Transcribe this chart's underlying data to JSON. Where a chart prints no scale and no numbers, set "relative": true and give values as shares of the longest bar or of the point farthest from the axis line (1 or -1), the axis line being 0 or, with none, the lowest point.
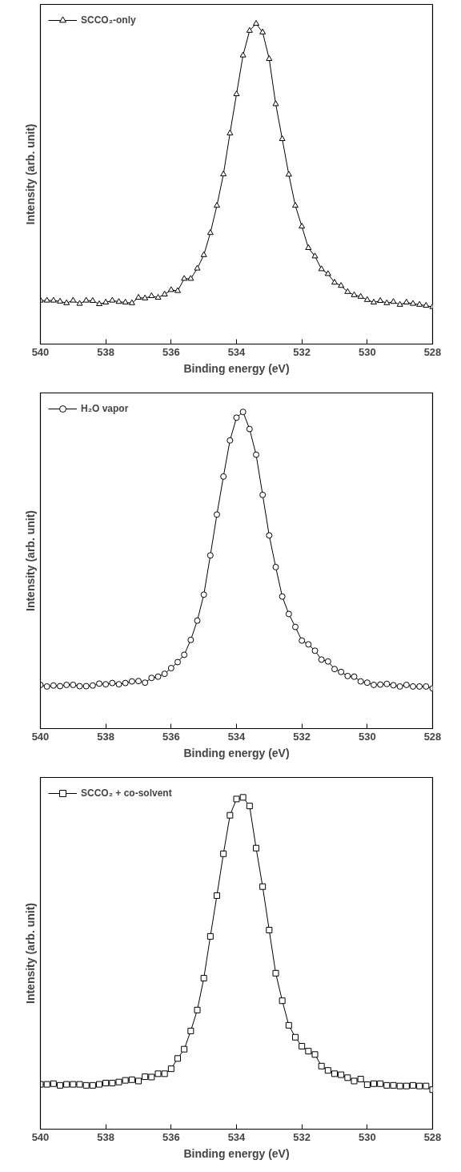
{
  "chart_data": [
    {
      "type": "line",
      "relative": true,
      "xlabel": "Binding energy (eV)",
      "ylabel": "Intensity (arb. unit)",
      "xlim": [
        540,
        528
      ],
      "xticks": [
        540,
        538,
        536,
        534,
        532,
        530,
        528
      ],
      "grid": false,
      "legend": "top left",
      "marker": "triangle",
      "line_style": "solid",
      "x": [
        540,
        539.8,
        539.6,
        539.4,
        539.2,
        539,
        538.8,
        538.6,
        538.4,
        538.2,
        538,
        537.8,
        537.6,
        537.4,
        537.2,
        537,
        536.8,
        536.6,
        536.4,
        536.2,
        536,
        535.8,
        535.6,
        535.4,
        535.2,
        535,
        534.8,
        534.6,
        534.4,
        534.2,
        534,
        533.8,
        533.6,
        533.4,
        533.2,
        533,
        532.8,
        532.6,
        532.4,
        532.2,
        532,
        531.8,
        531.6,
        531.4,
        531.2,
        531,
        530.8,
        530.6,
        530.4,
        530.2,
        530,
        529.8,
        529.6,
        529.4,
        529.2,
        529,
        528.8,
        528.6,
        528.4,
        528.2,
        528
      ],
      "series": [
        {
          "name": "SCCO₂-only",
          "color": "#000000",
          "values": [
            0.136,
            0.136,
            0.136,
            0.133,
            0.128,
            0.136,
            0.126,
            0.136,
            0.135,
            0.125,
            0.13,
            0.136,
            0.132,
            0.13,
            0.128,
            0.145,
            0.143,
            0.15,
            0.145,
            0.155,
            0.169,
            0.166,
            0.204,
            0.204,
            0.236,
            0.278,
            0.347,
            0.432,
            0.53,
            0.658,
            0.78,
            0.901,
            0.978,
            1,
            0.973,
            0.89,
            0.749,
            0.64,
            0.529,
            0.432,
            0.367,
            0.3,
            0.274,
            0.234,
            0.219,
            0.192,
            0.182,
            0.163,
            0.153,
            0.148,
            0.138,
            0.13,
            0.135,
            0.128,
            0.132,
            0.123,
            0.13,
            0.126,
            0.123,
            0.12,
            0.116
          ]
        }
      ]
    },
    {
      "type": "line",
      "relative": true,
      "xlabel": "Binding energy (eV)",
      "ylabel": "Intensity (arb. unit)",
      "xlim": [
        540,
        528
      ],
      "xticks": [
        540,
        538,
        536,
        534,
        532,
        530,
        528
      ],
      "grid": false,
      "legend": "top left",
      "marker": "circle",
      "line_style": "solid",
      "x": [
        540,
        539.8,
        539.6,
        539.4,
        539.2,
        539,
        538.8,
        538.6,
        538.4,
        538.2,
        538,
        537.8,
        537.6,
        537.4,
        537.2,
        537,
        536.8,
        536.6,
        536.4,
        536.2,
        536,
        535.8,
        535.6,
        535.4,
        535.2,
        535,
        534.8,
        534.6,
        534.4,
        534.2,
        534,
        533.8,
        533.6,
        533.4,
        533.2,
        533,
        532.8,
        532.6,
        532.4,
        532.2,
        532,
        531.8,
        531.6,
        531.4,
        531.2,
        531,
        530.8,
        530.6,
        530.4,
        530.2,
        530,
        529.8,
        529.6,
        529.4,
        529.2,
        529,
        528.8,
        528.6,
        528.4,
        528.2,
        528
      ],
      "series": [
        {
          "name": "H₂O vapor",
          "color": "#000000",
          "values": [
            0.138,
            0.133,
            0.136,
            0.134,
            0.138,
            0.138,
            0.134,
            0.134,
            0.136,
            0.142,
            0.14,
            0.144,
            0.14,
            0.144,
            0.149,
            0.15,
            0.145,
            0.16,
            0.164,
            0.173,
            0.191,
            0.21,
            0.233,
            0.28,
            0.341,
            0.423,
            0.547,
            0.676,
            0.796,
            0.91,
            0.982,
            1,
            0.946,
            0.865,
            0.738,
            0.61,
            0.51,
            0.417,
            0.362,
            0.321,
            0.278,
            0.266,
            0.246,
            0.218,
            0.212,
            0.188,
            0.179,
            0.166,
            0.164,
            0.149,
            0.145,
            0.138,
            0.139,
            0.141,
            0.137,
            0.133,
            0.138,
            0.133,
            0.133,
            0.133,
            0.127
          ]
        }
      ]
    },
    {
      "type": "line",
      "relative": true,
      "xlabel": "Binding energy (eV)",
      "ylabel": "Intensity (arb. unit)",
      "xlim": [
        540,
        528
      ],
      "xticks": [
        540,
        538,
        536,
        534,
        532,
        530,
        528
      ],
      "grid": false,
      "legend": "top left",
      "marker": "square",
      "line_style": "solid",
      "x": [
        540,
        539.8,
        539.6,
        539.4,
        539.2,
        539,
        538.8,
        538.6,
        538.4,
        538.2,
        538,
        537.8,
        537.6,
        537.4,
        537.2,
        537,
        536.8,
        536.6,
        536.4,
        536.2,
        536,
        535.8,
        535.6,
        535.4,
        535.2,
        535,
        534.8,
        534.6,
        534.4,
        534.2,
        534,
        533.8,
        533.6,
        533.4,
        533.2,
        533,
        532.8,
        532.6,
        532.4,
        532.2,
        532,
        531.8,
        531.6,
        531.4,
        531.2,
        531,
        530.8,
        530.6,
        530.4,
        530.2,
        530,
        529.8,
        529.6,
        529.4,
        529.2,
        529,
        528.8,
        528.6,
        528.4,
        528.2,
        528
      ],
      "series": [
        {
          "name": "SCCO₂ + co-solvent",
          "color": "#000000",
          "values": [
            0.135,
            0.135,
            0.137,
            0.132,
            0.135,
            0.135,
            0.135,
            0.132,
            0.132,
            0.135,
            0.139,
            0.139,
            0.142,
            0.147,
            0.149,
            0.145,
            0.158,
            0.157,
            0.167,
            0.167,
            0.182,
            0.213,
            0.241,
            0.296,
            0.359,
            0.455,
            0.581,
            0.704,
            0.83,
            0.946,
            0.995,
            1,
            0.974,
            0.847,
            0.731,
            0.6,
            0.47,
            0.387,
            0.313,
            0.277,
            0.25,
            0.235,
            0.225,
            0.19,
            0.177,
            0.167,
            0.164,
            0.155,
            0.145,
            0.151,
            0.134,
            0.137,
            0.137,
            0.132,
            0.132,
            0.13,
            0.13,
            0.132,
            0.13,
            0.13,
            0.119
          ]
        }
      ]
    }
  ]
}
